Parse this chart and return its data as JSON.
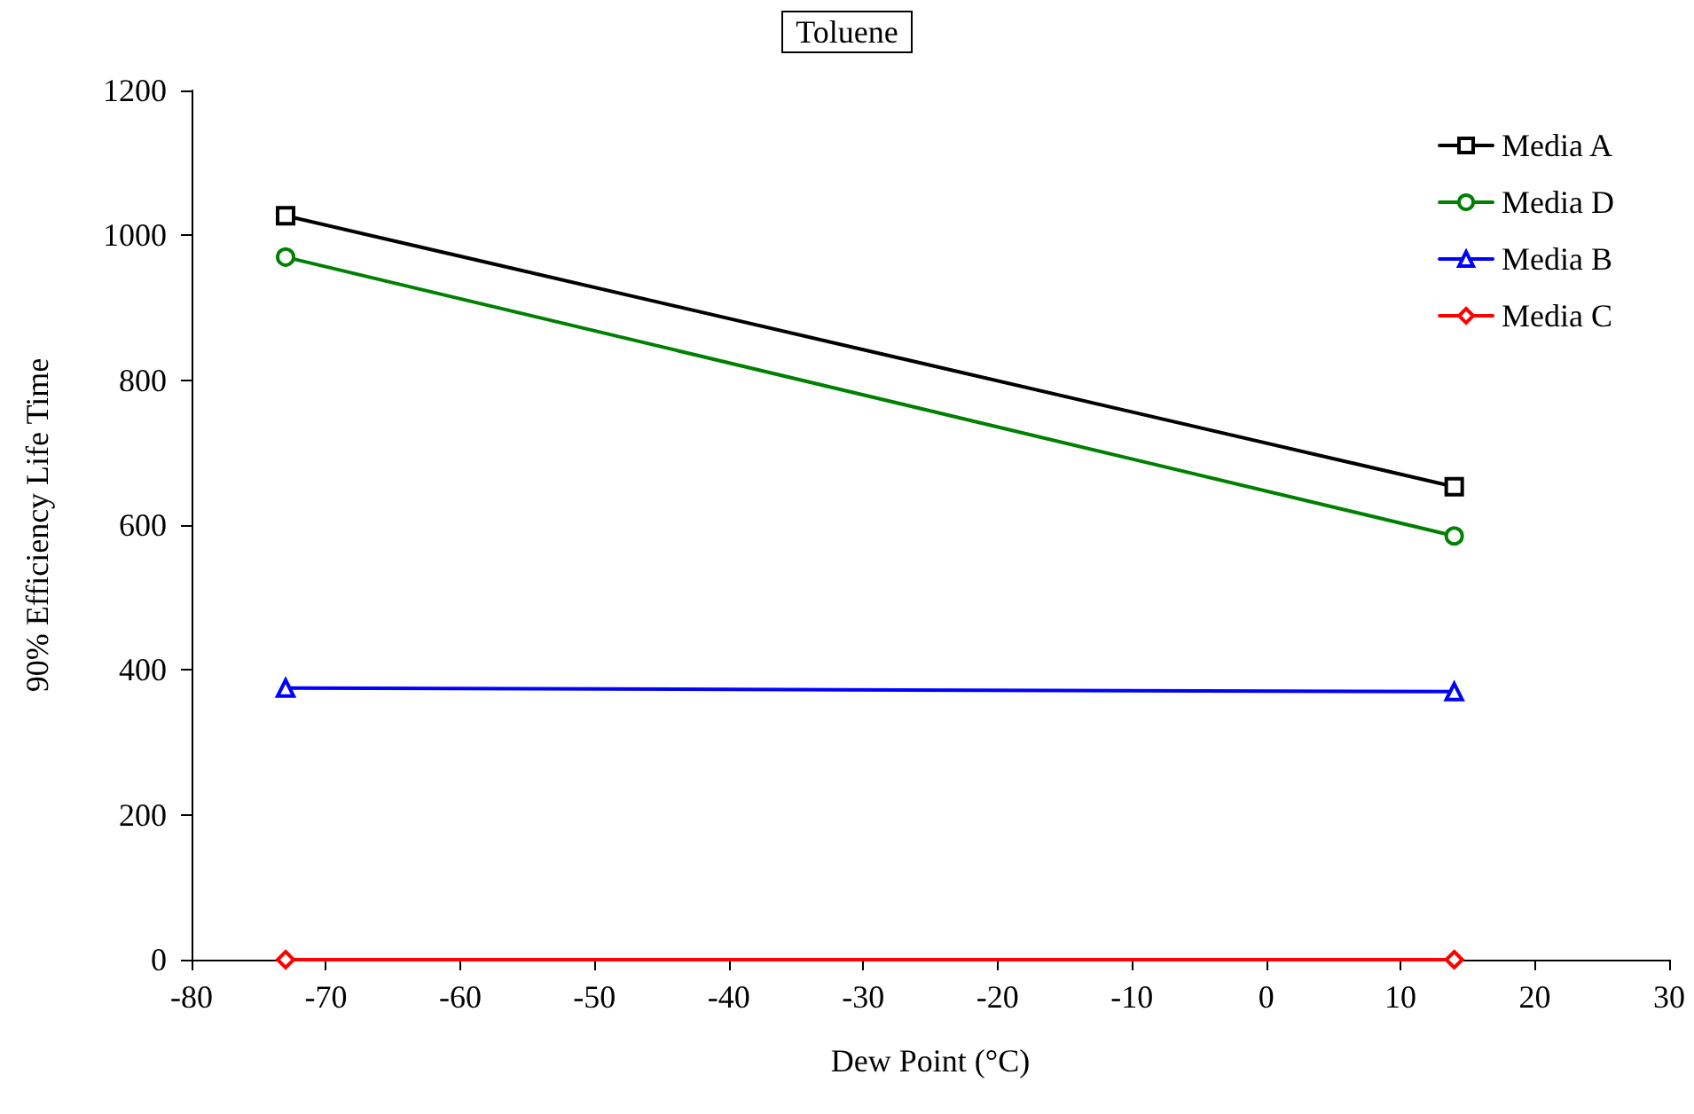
{
  "chart_data": {
    "type": "line",
    "title": "Toluene",
    "xlabel": "Dew Point (°C)",
    "ylabel": "90% Efficiency Life Time",
    "x": [
      -73,
      14
    ],
    "series": [
      {
        "name": "Media A",
        "color": "#000000",
        "marker": "square",
        "values": [
          1027,
          653
        ]
      },
      {
        "name": "Media D",
        "color": "#008000",
        "marker": "circle",
        "values": [
          970,
          585
        ]
      },
      {
        "name": "Media B",
        "color": "#0000ff",
        "marker": "triangle",
        "values": [
          375,
          370
        ]
      },
      {
        "name": "Media C",
        "color": "#ff0000",
        "marker": "diamond",
        "values": [
          0,
          0
        ]
      }
    ],
    "xlim": [
      -80,
      30
    ],
    "xticks": [
      -80,
      -70,
      -60,
      -50,
      -40,
      -30,
      -20,
      -10,
      0,
      10,
      20,
      30
    ],
    "ylim": [
      0,
      1200
    ],
    "yticks": [
      0,
      200,
      400,
      600,
      800,
      1000,
      1200
    ],
    "grid": false,
    "legend": "top right",
    "line_style": "solid"
  }
}
